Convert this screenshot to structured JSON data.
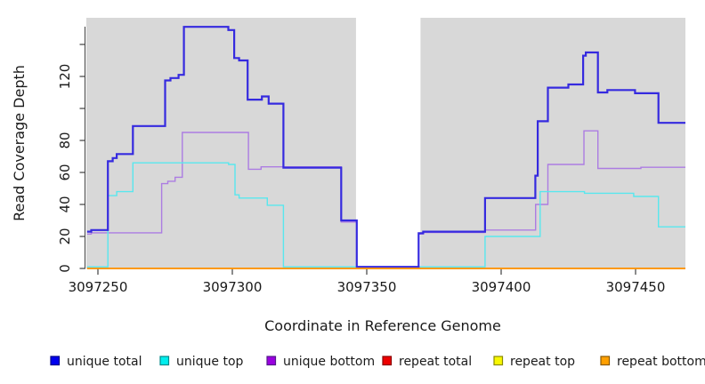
{
  "figure": {
    "title": "",
    "x_axis_label": "Coordinate in Reference Genome",
    "y_axis_label": "Read Coverage Depth"
  },
  "chart_data": {
    "type": "line",
    "subtype": "step-after",
    "title": "",
    "xlabel": "Coordinate in Reference Genome",
    "ylabel": "Read Coverage Depth",
    "xlim": [
      3097246,
      3097468.5
    ],
    "ylim": [
      0,
      157
    ],
    "grid": false,
    "legend_position": "bottom",
    "plot_background": "#d8d8d8",
    "page_background": "#ffffff",
    "gap_region": {
      "x_start": 3097346,
      "x_end": 3097370,
      "color": "#ffffff"
    },
    "x_ticks": [
      {
        "value": 3097250,
        "label": "3097250"
      },
      {
        "value": 3097300,
        "label": "3097300"
      },
      {
        "value": 3097350,
        "label": "3097350"
      },
      {
        "value": 3097400,
        "label": "3097400"
      },
      {
        "value": 3097450,
        "label": "3097450"
      }
    ],
    "y_ticks": [
      {
        "value": 0,
        "label": "0"
      },
      {
        "value": 20,
        "label": "20"
      },
      {
        "value": 40,
        "label": "40"
      },
      {
        "value": 60,
        "label": "60"
      },
      {
        "value": 80,
        "label": "80"
      },
      {
        "value": 100,
        "label": ""
      },
      {
        "value": 120,
        "label": "120"
      },
      {
        "value": 140,
        "label": ""
      }
    ],
    "series": [
      {
        "name": "unique bottom",
        "color": "#ac7ce2",
        "line_width": 1.4,
        "points": [
          [
            3097246,
            21.5
          ],
          [
            3097247.5,
            22.3
          ],
          [
            3097273.7,
            53
          ],
          [
            3097276,
            54.5
          ],
          [
            3097278.7,
            57
          ],
          [
            3097281.4,
            85
          ],
          [
            3097306,
            62
          ],
          [
            3097310.7,
            63.5
          ],
          [
            3097340.5,
            29
          ],
          [
            3097346.3,
            1
          ],
          [
            3097369.3,
            21.5
          ],
          [
            3097371,
            22.5
          ],
          [
            3097394,
            24
          ],
          [
            3097412.8,
            40
          ],
          [
            3097417.4,
            65
          ],
          [
            3097430.8,
            86
          ],
          [
            3097436,
            62.5
          ],
          [
            3097452,
            63.2
          ]
        ]
      },
      {
        "name": "unique top",
        "color": "#58e7ee",
        "line_width": 1.4,
        "points": [
          [
            3097246,
            1
          ],
          [
            3097253.7,
            45.5
          ],
          [
            3097257,
            48
          ],
          [
            3097263,
            66
          ],
          [
            3097298.6,
            65
          ],
          [
            3097301,
            46
          ],
          [
            3097302.5,
            44
          ],
          [
            3097313,
            39.5
          ],
          [
            3097319,
            1
          ],
          [
            3097394,
            20
          ],
          [
            3097414.5,
            48
          ],
          [
            3097431,
            47
          ],
          [
            3097449.3,
            45
          ],
          [
            3097458.5,
            26
          ]
        ]
      },
      {
        "name": "unique total",
        "color": "#352adf",
        "line_width": 2.2,
        "points": [
          [
            3097246,
            23
          ],
          [
            3097247.5,
            24
          ],
          [
            3097253.7,
            67
          ],
          [
            3097255.5,
            69
          ],
          [
            3097257,
            71.5
          ],
          [
            3097263,
            89
          ],
          [
            3097275,
            117.5
          ],
          [
            3097277,
            119
          ],
          [
            3097280,
            121
          ],
          [
            3097282,
            151
          ],
          [
            3097298.5,
            149
          ],
          [
            3097300.7,
            131.5
          ],
          [
            3097302.5,
            130
          ],
          [
            3097305.7,
            105.5
          ],
          [
            3097311,
            107.5
          ],
          [
            3097313.5,
            103
          ],
          [
            3097319,
            63
          ],
          [
            3097340.5,
            30
          ],
          [
            3097346.3,
            1
          ],
          [
            3097369.3,
            22
          ],
          [
            3097371,
            23
          ],
          [
            3097394,
            44
          ],
          [
            3097412.7,
            58
          ],
          [
            3097413.6,
            92
          ],
          [
            3097417.4,
            113
          ],
          [
            3097425,
            115
          ],
          [
            3097430.5,
            133
          ],
          [
            3097431.5,
            135
          ],
          [
            3097436,
            110
          ],
          [
            3097439.5,
            111.5
          ],
          [
            3097449.8,
            109.5
          ],
          [
            3097458.5,
            91
          ]
        ]
      },
      {
        "name": "repeat total",
        "color": "#e00000",
        "line_width": 1.2,
        "points": [
          [
            3097246,
            0
          ]
        ]
      },
      {
        "name": "repeat top",
        "color": "#f2f200",
        "line_width": 1.2,
        "points": [
          [
            3097246,
            0
          ]
        ]
      },
      {
        "name": "repeat bottom",
        "color": "#ff9300",
        "line_width": 1.8,
        "points": [
          [
            3097246,
            0
          ]
        ]
      }
    ]
  },
  "legend": {
    "items": [
      {
        "label": "unique total",
        "color": "#0000ee",
        "border": "#00008b"
      },
      {
        "label": "unique top",
        "color": "#00eeee",
        "border": "#008b8b"
      },
      {
        "label": "unique bottom",
        "color": "#9a00e0",
        "border": "#551a8b"
      },
      {
        "label": "repeat total",
        "color": "#ee0000",
        "border": "#8b0000"
      },
      {
        "label": "repeat top",
        "color": "#f8f800",
        "border": "#8b8b00"
      },
      {
        "label": "repeat bottom",
        "color": "#ffa000",
        "border": "#8b5a00"
      }
    ]
  }
}
